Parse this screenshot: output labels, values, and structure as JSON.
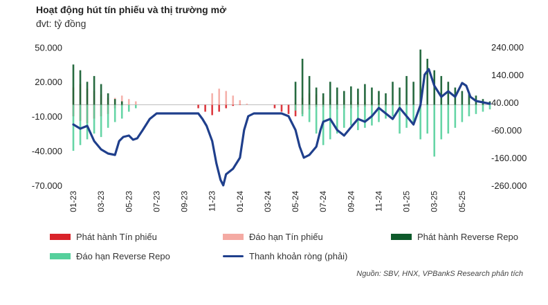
{
  "header": {
    "title": "Hoạt động hút tín phiếu và thị trường mở",
    "unit": "đvt: tỷ đồng"
  },
  "source": "Nguồn: SBV, HNX, VPBankS Research phân tích",
  "colors": {
    "issue_bill": "#d9232a",
    "mature_bill": "#f4aaa3",
    "issue_repo": "#0e5a2b",
    "mature_repo": "#55d09c",
    "net_liquidity": "#1f3f8c"
  },
  "chart_data": {
    "type": "bar",
    "x_tick_labels": [
      "01-23",
      "03-23",
      "05-23",
      "07-23",
      "09-23",
      "11-23",
      "01-24",
      "03-24",
      "05-24",
      "07-24",
      "09-24",
      "11-24",
      "01-25",
      "03-25",
      "05-25"
    ],
    "left_axis": {
      "ticks": [
        50000,
        20000,
        -10000,
        -40000,
        -70000
      ],
      "tick_labels": [
        "50.000",
        "20.000",
        "-10.000",
        "-40.000",
        "-70.000"
      ],
      "range": [
        -70000,
        55000
      ]
    },
    "right_axis": {
      "ticks": [
        240000,
        140000,
        40000,
        -60000,
        -160000,
        -260000
      ],
      "tick_labels": [
        "240.000",
        "140.000",
        "40.000",
        "-60.000",
        "-160.000",
        "-260.000"
      ],
      "range": [
        -260000,
        260000
      ]
    },
    "x_range": [
      0,
      30
    ],
    "series": [
      {
        "name": "Phát hành Tín phiếu",
        "kind": "bar",
        "axis": "left",
        "points": [
          [
            0,
            -10000
          ],
          [
            0.5,
            -14000
          ],
          [
            1,
            -16000
          ],
          [
            1.5,
            -12000
          ],
          [
            2,
            -10000
          ],
          [
            2.5,
            -8000
          ],
          [
            3,
            -3000
          ],
          [
            3.5,
            -1000
          ],
          [
            4,
            0
          ],
          [
            9,
            -3000
          ],
          [
            9.5,
            -6000
          ],
          [
            10,
            -9000
          ],
          [
            10.5,
            -6000
          ],
          [
            11,
            -3000
          ],
          [
            11.5,
            -1000
          ],
          [
            12,
            0
          ],
          [
            14.5,
            -3000
          ],
          [
            15,
            -6000
          ],
          [
            15.5,
            -8000
          ],
          [
            16,
            -10000
          ],
          [
            16.5,
            -8000
          ],
          [
            17,
            -4000
          ],
          [
            17.5,
            -2000
          ],
          [
            18,
            -2000
          ],
          [
            18.5,
            -3000
          ],
          [
            19,
            -4000
          ],
          [
            19.5,
            -3000
          ],
          [
            20,
            -3000
          ],
          [
            20.5,
            -2000
          ],
          [
            21,
            -1500
          ],
          [
            21.5,
            -1000
          ],
          [
            22,
            -800
          ],
          [
            22.5,
            -1000
          ],
          [
            23,
            -700
          ],
          [
            23.5,
            -500
          ],
          [
            24,
            -500
          ],
          [
            24.5,
            -300
          ],
          [
            25,
            0
          ]
        ]
      },
      {
        "name": "Đáo hạn Tín phiếu",
        "kind": "bar",
        "axis": "left",
        "points": [
          [
            0,
            15000
          ],
          [
            0.5,
            18000
          ],
          [
            1,
            14000
          ],
          [
            1.5,
            12000
          ],
          [
            2,
            9000
          ],
          [
            2.5,
            6000
          ],
          [
            3,
            6000
          ],
          [
            3.5,
            8000
          ],
          [
            4,
            5000
          ],
          [
            4.5,
            3000
          ],
          [
            10,
            10000
          ],
          [
            10.5,
            14000
          ],
          [
            11,
            12000
          ],
          [
            11.5,
            8000
          ],
          [
            12,
            4000
          ],
          [
            12.5,
            1000
          ],
          [
            16,
            2000
          ],
          [
            16.5,
            6000
          ],
          [
            17,
            10000
          ],
          [
            17.5,
            9000
          ],
          [
            18,
            7000
          ],
          [
            18.5,
            5000
          ],
          [
            19,
            4000
          ],
          [
            19.5,
            4000
          ],
          [
            20,
            3000
          ],
          [
            20.5,
            2500
          ],
          [
            21,
            2500
          ],
          [
            21.5,
            2000
          ],
          [
            22,
            1500
          ],
          [
            22.5,
            1200
          ],
          [
            23,
            1000
          ],
          [
            23.5,
            800
          ],
          [
            24,
            500
          ],
          [
            24.5,
            400
          ],
          [
            25,
            300
          ]
        ]
      },
      {
        "name": "Phát hành Reverse Repo",
        "kind": "bar",
        "axis": "left",
        "points": [
          [
            0,
            35000
          ],
          [
            0.5,
            30000
          ],
          [
            1,
            20000
          ],
          [
            1.5,
            25000
          ],
          [
            2,
            18000
          ],
          [
            2.5,
            10000
          ],
          [
            3,
            5000
          ],
          [
            3.5,
            3000
          ],
          [
            16,
            20000
          ],
          [
            16.5,
            40000
          ],
          [
            17,
            25000
          ],
          [
            17.5,
            15000
          ],
          [
            18,
            10000
          ],
          [
            18.5,
            20000
          ],
          [
            19,
            15000
          ],
          [
            19.5,
            12000
          ],
          [
            20,
            16000
          ],
          [
            20.5,
            14000
          ],
          [
            21,
            18000
          ],
          [
            21.5,
            15000
          ],
          [
            22,
            12000
          ],
          [
            22.5,
            10000
          ],
          [
            23,
            20000
          ],
          [
            23.5,
            15000
          ],
          [
            24,
            25000
          ],
          [
            24.5,
            20000
          ],
          [
            25,
            48000
          ],
          [
            25.5,
            40000
          ],
          [
            26,
            30000
          ],
          [
            26.5,
            25000
          ],
          [
            27,
            20000
          ],
          [
            27.5,
            15000
          ],
          [
            28,
            12000
          ],
          [
            28.5,
            10000
          ],
          [
            29,
            8000
          ],
          [
            29.5,
            5000
          ],
          [
            30,
            3000
          ]
        ]
      },
      {
        "name": "Đáo hạn Reverse Repo",
        "kind": "bar",
        "axis": "left",
        "points": [
          [
            0,
            -40000
          ],
          [
            0.5,
            -35000
          ],
          [
            1,
            -30000
          ],
          [
            1.5,
            -25000
          ],
          [
            2,
            -28000
          ],
          [
            2.5,
            -20000
          ],
          [
            3,
            -15000
          ],
          [
            3.5,
            -12000
          ],
          [
            4,
            -6000
          ],
          [
            4.5,
            -3000
          ],
          [
            16,
            -5000
          ],
          [
            16.5,
            -10000
          ],
          [
            17,
            -15000
          ],
          [
            17.5,
            -25000
          ],
          [
            18,
            -35000
          ],
          [
            18.5,
            -30000
          ],
          [
            19,
            -25000
          ],
          [
            19.5,
            -20000
          ],
          [
            20,
            -18000
          ],
          [
            20.5,
            -22000
          ],
          [
            21,
            -20000
          ],
          [
            21.5,
            -18000
          ],
          [
            22,
            -15000
          ],
          [
            22.5,
            -12000
          ],
          [
            23,
            -10000
          ],
          [
            23.5,
            -25000
          ],
          [
            24,
            -20000
          ],
          [
            24.5,
            -15000
          ],
          [
            25,
            -30000
          ],
          [
            25.5,
            -25000
          ],
          [
            26,
            -45000
          ],
          [
            26.5,
            -30000
          ],
          [
            27,
            -25000
          ],
          [
            27.5,
            -20000
          ],
          [
            28,
            -15000
          ],
          [
            28.5,
            -10000
          ],
          [
            29,
            -8000
          ],
          [
            29.5,
            -6000
          ],
          [
            30,
            -4000
          ]
        ]
      },
      {
        "name": "Thanh khoản ròng (phải)",
        "kind": "line",
        "axis": "right",
        "points": [
          [
            0,
            -40000
          ],
          [
            0.5,
            -55000
          ],
          [
            1,
            -45000
          ],
          [
            1.5,
            -100000
          ],
          [
            2,
            -130000
          ],
          [
            2.5,
            -145000
          ],
          [
            3,
            -150000
          ],
          [
            3.3,
            -100000
          ],
          [
            3.6,
            -85000
          ],
          [
            4,
            -80000
          ],
          [
            4.3,
            -95000
          ],
          [
            4.6,
            -90000
          ],
          [
            5,
            -60000
          ],
          [
            5.5,
            -20000
          ],
          [
            6,
            0
          ],
          [
            6.5,
            0
          ],
          [
            7,
            0
          ],
          [
            8,
            0
          ],
          [
            9,
            0
          ],
          [
            9.3,
            -20000
          ],
          [
            9.6,
            -45000
          ],
          [
            10,
            -100000
          ],
          [
            10.3,
            -180000
          ],
          [
            10.6,
            -240000
          ],
          [
            10.8,
            -260000
          ],
          [
            11,
            -220000
          ],
          [
            11.5,
            -200000
          ],
          [
            12,
            -160000
          ],
          [
            12.3,
            -60000
          ],
          [
            12.6,
            -10000
          ],
          [
            13,
            0
          ],
          [
            14,
            0
          ],
          [
            15,
            0
          ],
          [
            15.5,
            -10000
          ],
          [
            16,
            -60000
          ],
          [
            16.3,
            -120000
          ],
          [
            16.6,
            -160000
          ],
          [
            17,
            -150000
          ],
          [
            17.5,
            -120000
          ],
          [
            17.8,
            -60000
          ],
          [
            18,
            -30000
          ],
          [
            18.5,
            -20000
          ],
          [
            19,
            -60000
          ],
          [
            19.5,
            -80000
          ],
          [
            20,
            -50000
          ],
          [
            20.5,
            -20000
          ],
          [
            21,
            -30000
          ],
          [
            21.5,
            -10000
          ],
          [
            22,
            20000
          ],
          [
            22.5,
            0
          ],
          [
            23,
            -20000
          ],
          [
            23.5,
            20000
          ],
          [
            24,
            -10000
          ],
          [
            24.5,
            -40000
          ],
          [
            25,
            30000
          ],
          [
            25.3,
            140000
          ],
          [
            25.6,
            160000
          ],
          [
            26,
            100000
          ],
          [
            26.5,
            60000
          ],
          [
            27,
            80000
          ],
          [
            27.5,
            60000
          ],
          [
            28,
            110000
          ],
          [
            28.3,
            100000
          ],
          [
            28.6,
            60000
          ],
          [
            29,
            45000
          ],
          [
            29.5,
            40000
          ],
          [
            30,
            35000
          ]
        ]
      }
    ]
  }
}
